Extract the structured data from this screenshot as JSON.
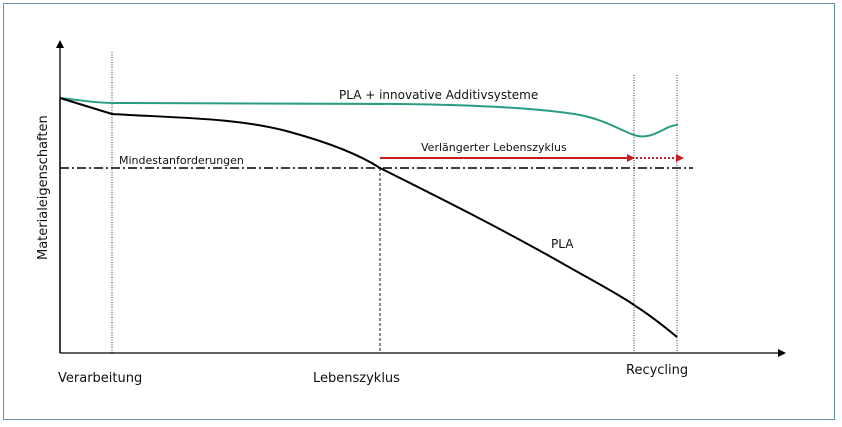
{
  "diagram": {
    "y_axis_label": "Materialeigenschaften",
    "x_labels": {
      "processing": "Verarbeitung",
      "lifecycle": "Lebenszyklus",
      "recycling": "Recycling"
    },
    "curves": {
      "additive": "PLA + innovative Additivsysteme",
      "pla": "PLA"
    },
    "threshold_label": "Mindestanforderungen",
    "extended_label": "Verlängerter Lebenszyklus",
    "colors": {
      "additive_curve": "#2a9c84",
      "pla_curve": "#000000",
      "arrow": "#c41e1e",
      "frame": "#5b8fa3"
    }
  }
}
